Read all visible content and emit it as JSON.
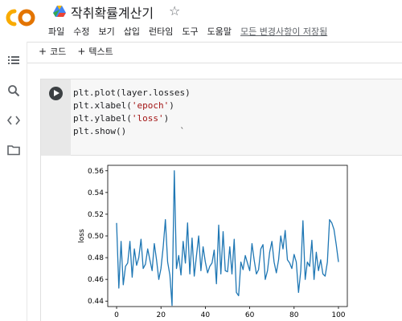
{
  "header": {
    "logo_text": "CO",
    "title": "작취확률계산기",
    "star_icon": "☆",
    "menu": [
      "파일",
      "수정",
      "보기",
      "삽입",
      "런타임",
      "도구",
      "도움말"
    ],
    "save_status": "모든 변경사항이 저장됨"
  },
  "toolbar": {
    "add_code": "코드",
    "add_text": "텍스트",
    "plus": "+"
  },
  "sidebar": {
    "icons": [
      "menu-icon",
      "search-icon",
      "code-icon",
      "folder-icon"
    ]
  },
  "cell": {
    "code_lines": [
      [
        "plt.plot(layer.losses)"
      ],
      [
        "plt.xlabel(",
        "'epoch'",
        ")"
      ],
      [
        "plt.ylabel(",
        "'loss'",
        ")"
      ],
      [
        "plt.show()"
      ]
    ],
    "stray_tick": "`"
  },
  "colors": {
    "line": "#1f77b4",
    "logo_orange": "#f9ab00",
    "logo_dark": "#e37400"
  },
  "chart_data": {
    "type": "line",
    "title": "",
    "xlabel": "epoch",
    "ylabel": "loss",
    "xlim": [
      -4,
      104
    ],
    "ylim": [
      0.435,
      0.565
    ],
    "xticks": [
      0,
      20,
      40,
      60,
      80,
      100
    ],
    "yticks": [
      0.44,
      0.46,
      0.48,
      0.5,
      0.52,
      0.54,
      0.56
    ],
    "ytick_labels": [
      "0.44",
      "0.46",
      "0.48",
      "0.50",
      "0.52",
      "0.54",
      "0.56"
    ],
    "grid": false,
    "legend": "none",
    "series": [
      {
        "values": [
          0.512,
          0.452,
          0.495,
          0.455,
          0.472,
          0.475,
          0.495,
          0.462,
          0.488,
          0.473,
          0.48,
          0.497,
          0.47,
          0.474,
          0.488,
          0.478,
          0.468,
          0.493,
          0.478,
          0.46,
          0.47,
          0.49,
          0.515,
          0.476,
          0.464,
          0.436,
          0.56,
          0.47,
          0.482,
          0.464,
          0.495,
          0.475,
          0.512,
          0.465,
          0.498,
          0.463,
          0.482,
          0.5,
          0.468,
          0.49,
          0.476,
          0.466,
          0.472,
          0.475,
          0.487,
          0.456,
          0.51,
          0.465,
          0.504,
          0.468,
          0.467,
          0.49,
          0.465,
          0.497,
          0.448,
          0.445,
          0.476,
          0.469,
          0.482,
          0.475,
          0.468,
          0.493,
          0.478,
          0.465,
          0.469,
          0.488,
          0.492,
          0.46,
          0.468,
          0.485,
          0.495,
          0.476,
          0.466,
          0.478,
          0.5,
          0.488,
          0.505,
          0.478,
          0.475,
          0.47,
          0.483,
          0.476,
          0.448,
          0.468,
          0.514,
          0.46,
          0.476,
          0.472,
          0.496,
          0.46,
          0.485,
          0.468,
          0.478,
          0.465,
          0.463,
          0.476,
          0.515,
          0.512,
          0.506,
          0.492,
          0.476
        ]
      }
    ]
  }
}
